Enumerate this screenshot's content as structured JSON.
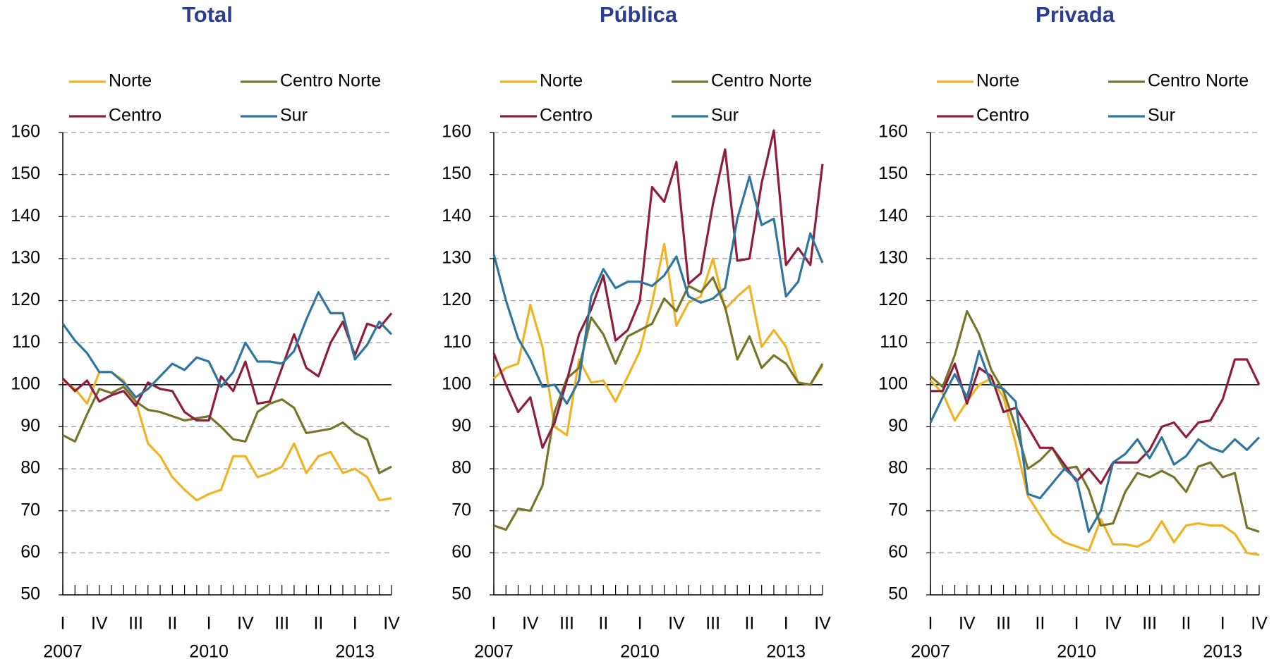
{
  "chart_data": [
    {
      "type": "line",
      "title": "Total",
      "categories": [
        "I",
        null,
        null,
        "IV",
        null,
        null,
        "III",
        null,
        null,
        "II",
        null,
        null,
        "I",
        null,
        null,
        "IV",
        null,
        null,
        "III",
        null,
        null,
        "II",
        null,
        null,
        "I",
        null,
        null,
        "IV"
      ],
      "years": [
        "2007",
        null,
        null,
        null,
        null,
        null,
        null,
        null,
        null,
        null,
        null,
        null,
        "2010",
        null,
        null,
        null,
        null,
        null,
        null,
        null,
        null,
        null,
        null,
        null,
        "2013",
        null,
        null,
        null
      ],
      "ylim": [
        50,
        160
      ],
      "yticks": [
        50,
        60,
        70,
        80,
        90,
        100,
        110,
        120,
        130,
        140,
        150,
        160
      ],
      "grid": true,
      "hline": 100,
      "series": [
        {
          "name": "Norte",
          "color": "#f0b323",
          "values": [
            101,
            99,
            95.5,
            103,
            103,
            101,
            96,
            86,
            83,
            78,
            75,
            72.5,
            74,
            75,
            83,
            83,
            78,
            79,
            80.5,
            86,
            79,
            83,
            84,
            79,
            80,
            78,
            72.5,
            73
          ]
        },
        {
          "name": "Centro Norte",
          "color": "#76752a",
          "values": [
            88,
            86.5,
            93,
            99,
            98,
            99.5,
            96,
            94,
            93.5,
            92.5,
            91.5,
            92,
            92.5,
            90,
            87,
            86.5,
            93.5,
            95.5,
            96.5,
            94.5,
            88.5,
            89,
            89.5,
            91,
            88.5,
            87,
            79,
            80.5
          ]
        },
        {
          "name": "Centro",
          "color": "#8f1d3e",
          "values": [
            101.5,
            98.5,
            101,
            96,
            97.5,
            98.5,
            95,
            100.5,
            99,
            98.5,
            93.5,
            91.5,
            91.5,
            102,
            98.5,
            105.5,
            95.5,
            96,
            104,
            112,
            104,
            102,
            110,
            115,
            107,
            114.5,
            113.5,
            117
          ]
        },
        {
          "name": "Sur",
          "color": "#2e75a0",
          "values": [
            114.5,
            110.5,
            107.5,
            103,
            103,
            100.5,
            97,
            99,
            102,
            105,
            103.5,
            106.5,
            105.5,
            99.5,
            103,
            110,
            105.5,
            105.5,
            105,
            108,
            115.5,
            122,
            117,
            117,
            106,
            109.5,
            115,
            112
          ]
        }
      ]
    },
    {
      "type": "line",
      "title": "Pública",
      "categories": [
        "I",
        null,
        null,
        "IV",
        null,
        null,
        "III",
        null,
        null,
        "II",
        null,
        null,
        "I",
        null,
        null,
        "IV",
        null,
        null,
        "III",
        null,
        null,
        "II",
        null,
        null,
        "I",
        null,
        null,
        "IV"
      ],
      "years": [
        "2007",
        null,
        null,
        null,
        null,
        null,
        null,
        null,
        null,
        null,
        null,
        null,
        "2010",
        null,
        null,
        null,
        null,
        null,
        null,
        null,
        null,
        null,
        null,
        null,
        "2013",
        null,
        null,
        null
      ],
      "ylim": [
        50,
        160
      ],
      "yticks": [
        50,
        60,
        70,
        80,
        90,
        100,
        110,
        120,
        130,
        140,
        150,
        160
      ],
      "grid": true,
      "hline": 100,
      "series": [
        {
          "name": "Norte",
          "color": "#f0b323",
          "values": [
            101.5,
            104,
            105,
            119,
            109,
            90,
            88,
            106,
            100.5,
            101,
            96,
            102,
            108,
            119.5,
            133.5,
            114,
            119.5,
            121,
            130,
            118,
            121,
            123.5,
            109,
            113,
            109,
            100.5,
            100,
            104.5
          ]
        },
        {
          "name": "Centro Norte",
          "color": "#76752a",
          "values": [
            66.5,
            65.5,
            70.5,
            70,
            76,
            93.5,
            101.5,
            104,
            116,
            112,
            105,
            111.5,
            113,
            114.5,
            120.5,
            117.5,
            123.5,
            122,
            125.5,
            118.5,
            106,
            111.5,
            104,
            107,
            105,
            100.5,
            100,
            105
          ]
        },
        {
          "name": "Centro",
          "color": "#8f1d3e",
          "values": [
            107.5,
            100,
            93.5,
            97,
            85,
            91,
            101,
            112,
            118,
            126,
            110.5,
            113,
            120,
            147,
            143.5,
            153,
            124,
            126.5,
            143,
            156,
            129.5,
            130,
            148,
            160.5,
            128.5,
            132.5,
            128.5,
            152.5
          ]
        },
        {
          "name": "Sur",
          "color": "#2e75a0",
          "values": [
            131,
            120,
            111,
            106,
            99.5,
            100,
            95.5,
            101,
            121,
            127.5,
            123,
            124.5,
            124.5,
            123.5,
            126,
            130.5,
            121,
            119.5,
            120.5,
            123,
            139.5,
            149.5,
            138,
            139.5,
            121,
            124.5,
            136,
            129
          ]
        }
      ]
    },
    {
      "type": "line",
      "title": "Privada",
      "categories": [
        "I",
        null,
        null,
        "IV",
        null,
        null,
        "III",
        null,
        null,
        "II",
        null,
        null,
        "I",
        null,
        null,
        "IV",
        null,
        null,
        "III",
        null,
        null,
        "II",
        null,
        null,
        "I",
        null,
        null,
        "IV"
      ],
      "years": [
        "2007",
        null,
        null,
        null,
        null,
        null,
        null,
        null,
        null,
        null,
        null,
        null,
        "2010",
        null,
        null,
        null,
        null,
        null,
        null,
        null,
        null,
        null,
        null,
        null,
        "2013",
        null,
        null,
        null
      ],
      "ylim": [
        50,
        160
      ],
      "yticks": [
        50,
        60,
        70,
        80,
        90,
        100,
        110,
        120,
        130,
        140,
        150,
        160
      ],
      "grid": true,
      "hline": 100,
      "series": [
        {
          "name": "Norte",
          "color": "#f0b323",
          "values": [
            101,
            98,
            91.5,
            96,
            100,
            101.5,
            97,
            86,
            73.5,
            69,
            64.5,
            62.5,
            61.5,
            60.5,
            68,
            62,
            62,
            61.5,
            63,
            67.5,
            62.5,
            66.5,
            67,
            66.5,
            66.5,
            64.5,
            60,
            59.5
          ]
        },
        {
          "name": "Centro Norte",
          "color": "#76752a",
          "values": [
            102,
            99.5,
            107,
            117.5,
            112,
            103.5,
            98.5,
            90,
            80,
            82,
            85,
            80,
            80.5,
            75,
            66.5,
            67,
            74.5,
            79,
            78,
            79.5,
            78,
            74.5,
            80.5,
            81.5,
            78,
            79,
            66,
            65
          ]
        },
        {
          "name": "Centro",
          "color": "#8f1d3e",
          "values": [
            98.5,
            98.5,
            105,
            95.5,
            104,
            102,
            93.5,
            94.5,
            90,
            85,
            85,
            81,
            77,
            80,
            76.5,
            81.5,
            81.5,
            81.5,
            84.5,
            90,
            91,
            87.5,
            91,
            91.5,
            96.5,
            106,
            106,
            100
          ]
        },
        {
          "name": "Sur",
          "color": "#2e75a0",
          "values": [
            91,
            97,
            102.5,
            97,
            108,
            100,
            99,
            96,
            74,
            73,
            76.5,
            80,
            77.5,
            65,
            70,
            81.5,
            83.5,
            87,
            82.5,
            87.5,
            81,
            83,
            87,
            85,
            84,
            87,
            84.5,
            87.5
          ]
        }
      ]
    }
  ]
}
